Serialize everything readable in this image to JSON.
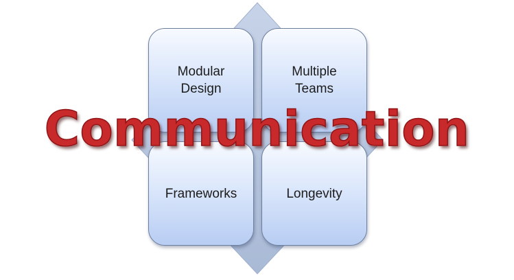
{
  "diagram": {
    "title": "Communication",
    "boxes": {
      "top_left": {
        "line1": "Modular",
        "line2": "Design"
      },
      "top_right": {
        "line1": "Multiple",
        "line2": "Teams"
      },
      "bottom_left": {
        "label": "Frameworks"
      },
      "bottom_right": {
        "label": "Longevity"
      }
    }
  },
  "colors": {
    "title_red": "#c8292b",
    "box_fill": "#dbe7fb",
    "box_border": "#6d7f9f",
    "diamond_fill": "#bccbe2"
  }
}
